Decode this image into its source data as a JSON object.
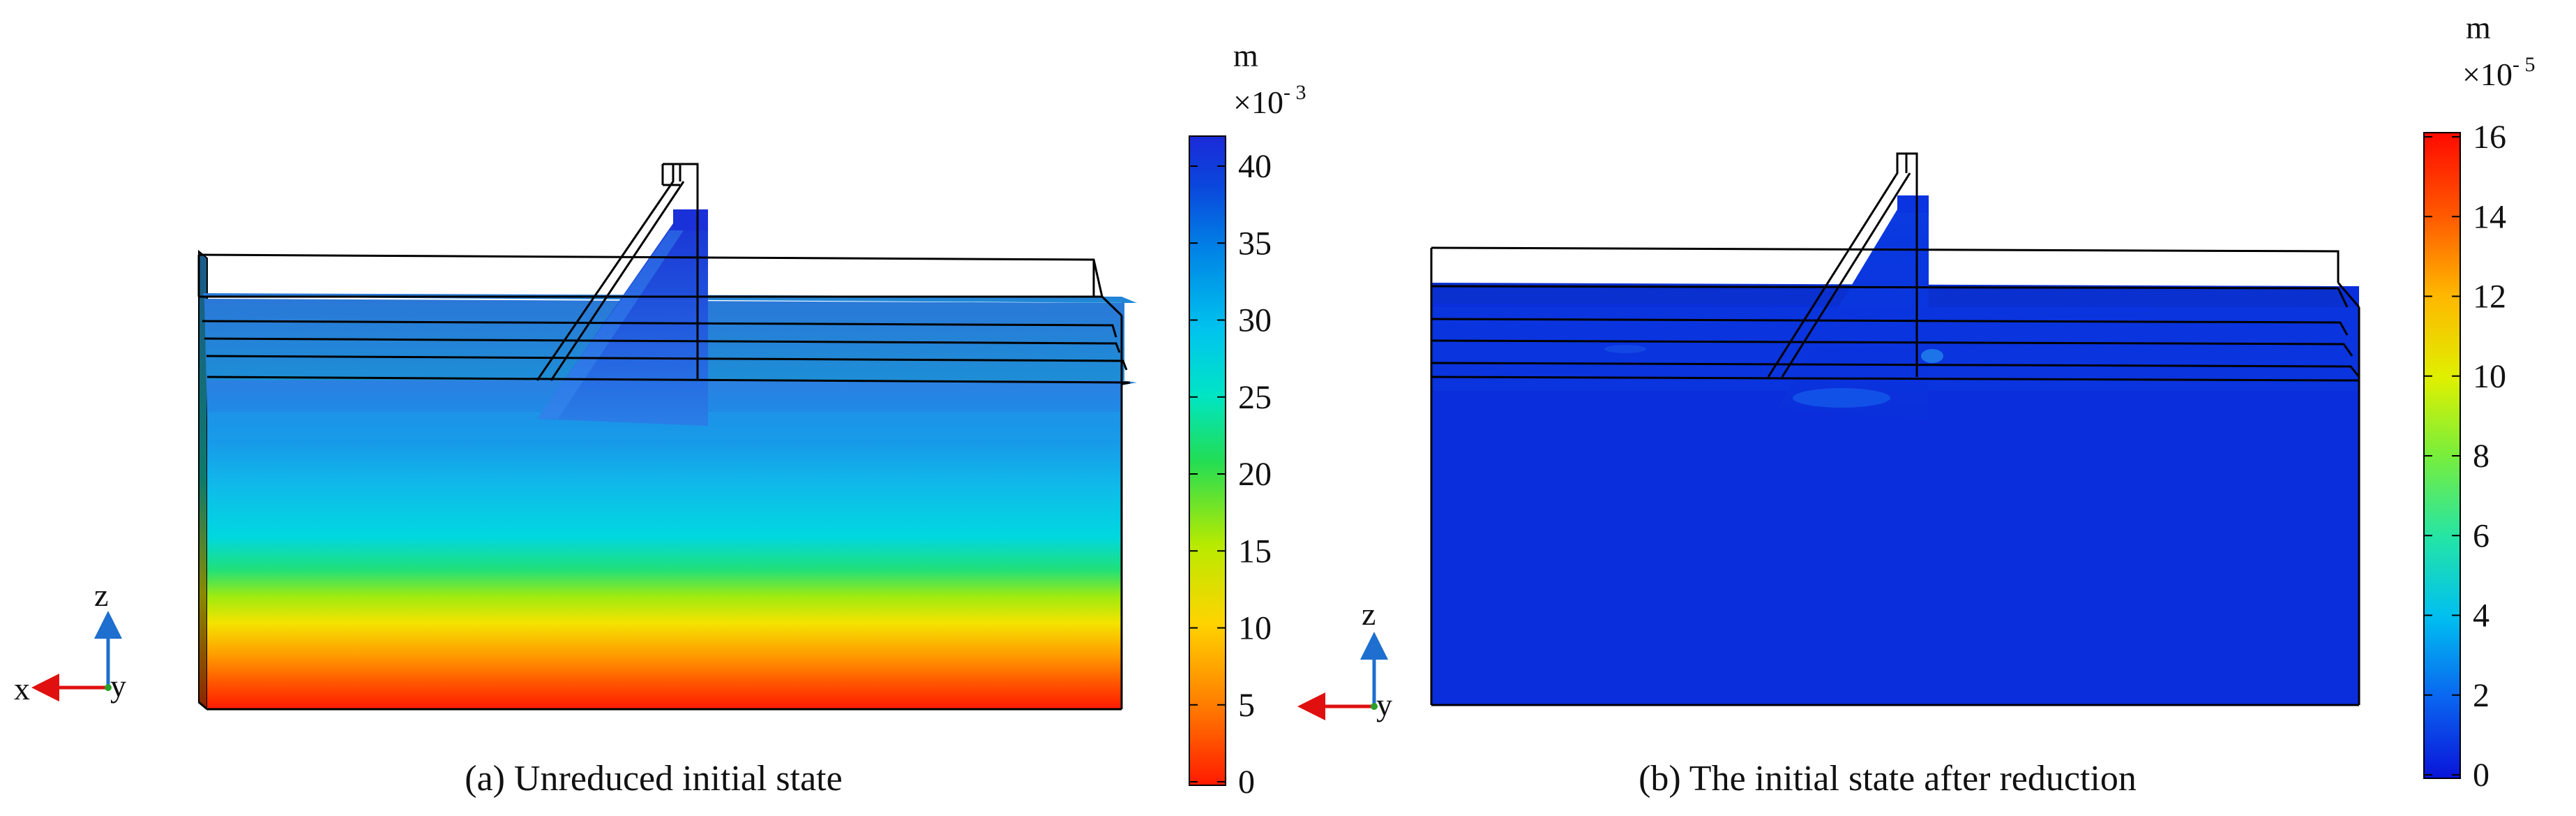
{
  "panels": [
    {
      "caption": "(a) Unreduced initial state",
      "colorbar": {
        "unit": "m",
        "scale_base": "×10",
        "scale_exponent": "- 3",
        "ticks": [
          "0",
          "5",
          "10",
          "15",
          "20",
          "25",
          "30",
          "35",
          "40"
        ],
        "colors": [
          "#ff1a00",
          "#ff7a00",
          "#ffd400",
          "#b8ea00",
          "#22dd55",
          "#00e5c4",
          "#00c4ee",
          "#0086e6",
          "#0a48dc",
          "#1a2ad8"
        ]
      },
      "axes": {
        "z": "z",
        "x": "x",
        "y": "y"
      }
    },
    {
      "caption": "(b) The initial state after reduction",
      "colorbar": {
        "unit": "m",
        "scale_base": "×10",
        "scale_exponent": "- 5",
        "ticks": [
          "0",
          "2",
          "4",
          "6",
          "8",
          "10",
          "12",
          "14",
          "16"
        ],
        "colors": [
          "#0a14d8",
          "#0a62f0",
          "#00bff0",
          "#23e4a8",
          "#78ee3c",
          "#dff000",
          "#ffb600",
          "#ff5a00",
          "#ff0a00"
        ]
      },
      "axes": {
        "z": "z",
        "y": "y"
      }
    }
  ]
}
